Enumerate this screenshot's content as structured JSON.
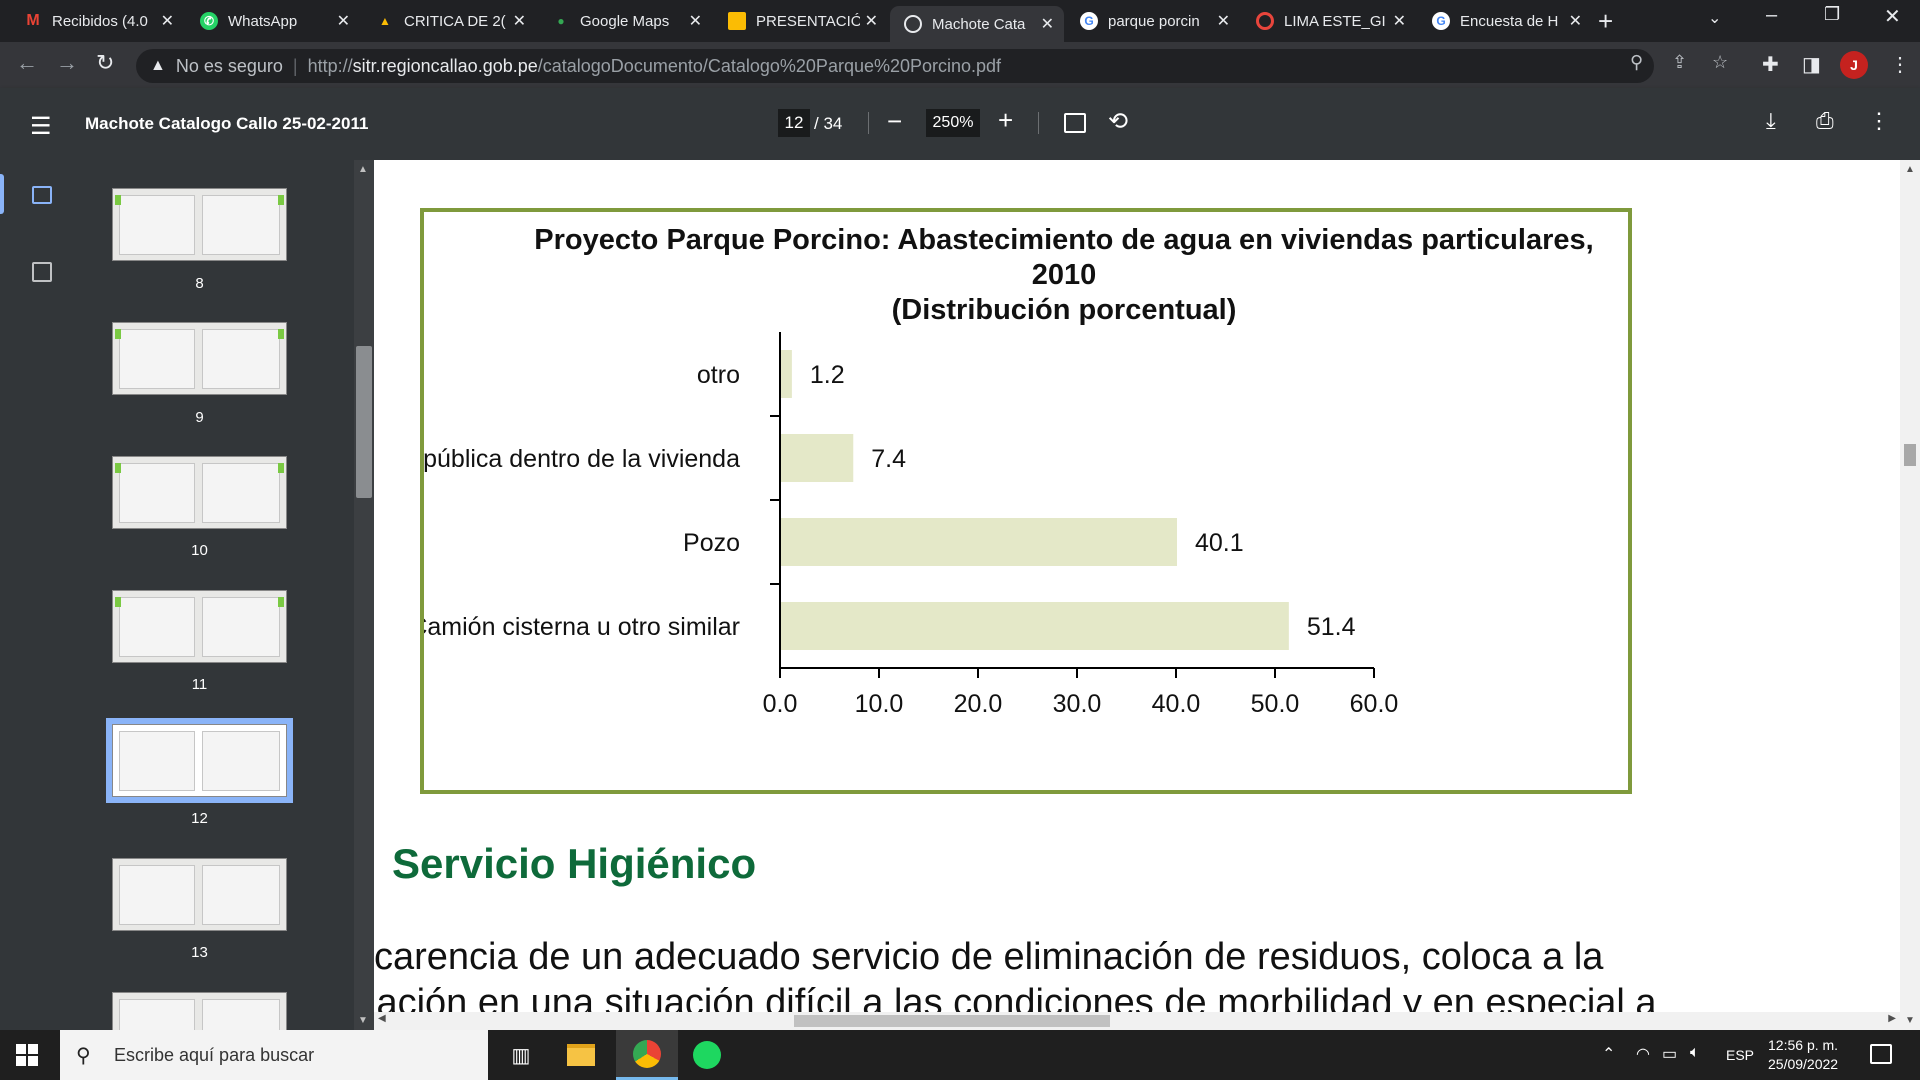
{
  "tabs": [
    {
      "label": "Recibidos (4.0",
      "icon": "gmail-icon",
      "active": false
    },
    {
      "label": "WhatsApp",
      "icon": "whatsapp-icon",
      "active": false
    },
    {
      "label": "CRITICA DE 2(",
      "icon": "google-drive-icon",
      "active": false
    },
    {
      "label": "Google Maps",
      "icon": "google-maps-icon",
      "active": false
    },
    {
      "label": "PRESENTACIÓ",
      "icon": "google-slides-icon",
      "active": false
    },
    {
      "label": "Machote Cata",
      "icon": "globe-icon",
      "active": true
    },
    {
      "label": "parque porcin",
      "icon": "google-icon",
      "active": false
    },
    {
      "label": "LIMA ESTE_GI",
      "icon": "target-icon",
      "active": false
    },
    {
      "label": "Encuesta de H",
      "icon": "google-icon",
      "active": false
    }
  ],
  "address_bar": {
    "security_label": "No es seguro",
    "url_prefix": "http://",
    "url_host": "sitr.regioncallao.gob.pe",
    "url_path": "/catalogoDocumento/Catalogo%20Parque%20Porcino.pdf"
  },
  "avatar_letter": "J",
  "pdf_toolbar": {
    "title": "Machote Catalogo Callo 25-02-2011",
    "current_page": "12",
    "total_pages": "/ 34",
    "zoom": "250%"
  },
  "thumbnails": [
    {
      "page": "8",
      "selected": false
    },
    {
      "page": "9",
      "selected": false
    },
    {
      "page": "10",
      "selected": false
    },
    {
      "page": "11",
      "selected": false
    },
    {
      "page": "12",
      "selected": true
    },
    {
      "page": "13",
      "selected": false
    }
  ],
  "chart_data": {
    "type": "bar",
    "orientation": "horizontal",
    "title_lines": [
      "Proyecto Parque Porcino: Abastecimiento de agua en viviendas particulares,",
      "2010",
      "(Distribución porcentual)"
    ],
    "categories": [
      "otro",
      "Red pública dentro de la vivienda",
      "Pozo",
      "Camión cisterna u otro similar"
    ],
    "values": [
      1.2,
      7.4,
      40.1,
      51.4
    ],
    "value_labels": [
      "1.2",
      "7.4",
      "40.1",
      "51.4"
    ],
    "xlim": [
      0,
      60
    ],
    "ticks": [
      "0.0",
      "10.0",
      "20.0",
      "30.0",
      "40.0",
      "50.0",
      "60.0"
    ],
    "bar_color": "#e4e8c8",
    "frame_color": "#7f9a3c",
    "grid": false
  },
  "document": {
    "section_title": "Servicio Higiénico",
    "paragraph_line1": "carencia de un adecuado servicio de eliminación de residuos, coloca a la",
    "paragraph_line2": "lación en una situación difícil a las condiciones de morbilidad y en especial a"
  },
  "taskbar": {
    "search_placeholder": "Escribe aquí para buscar",
    "language": "ESP",
    "time": "12:56 p. m.",
    "date": "25/09/2022"
  }
}
